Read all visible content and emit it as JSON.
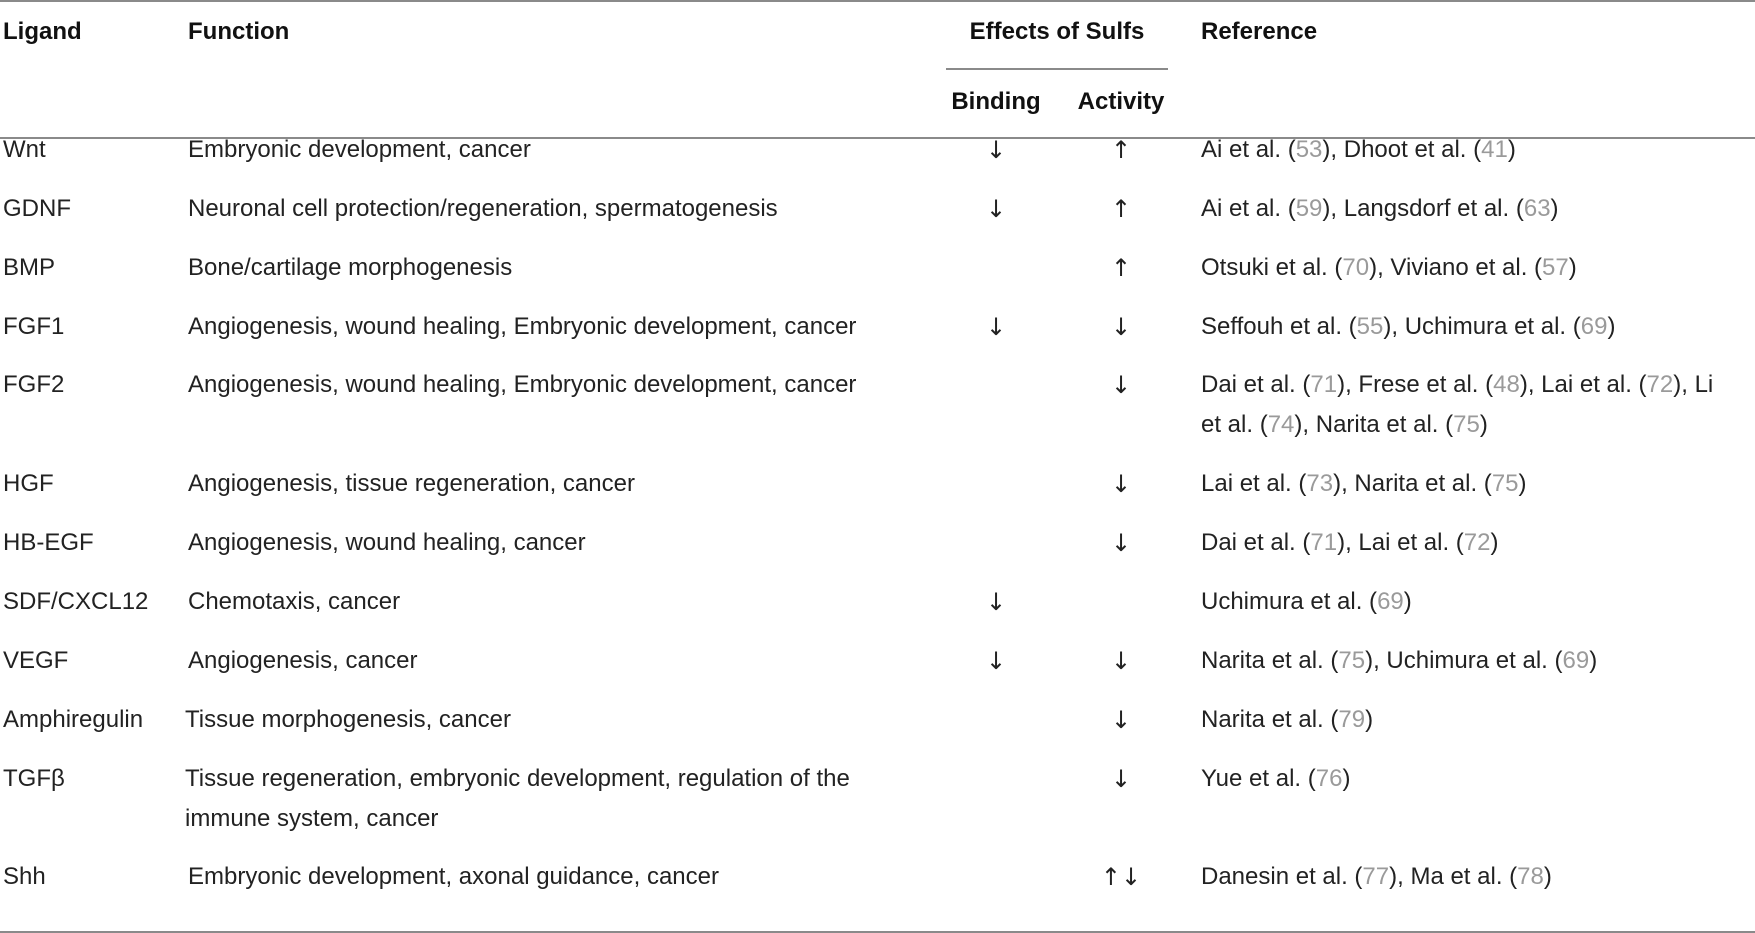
{
  "headers": {
    "ligand": "Ligand",
    "function": "Function",
    "effects": "Effects of Sulfs",
    "binding": "Binding",
    "activity": "Activity",
    "reference": "Reference"
  },
  "rows": [
    {
      "ligand": "Wnt",
      "function": [
        "Embryonic development, cancer"
      ],
      "binding": "↓",
      "activity": "↑",
      "reference": [
        [
          "Ai et al. (",
          "53",
          "), Dhoot et al. (",
          "41",
          ")"
        ]
      ]
    },
    {
      "ligand": "GDNF",
      "function": [
        "Neuronal cell protection/regeneration, spermatogenesis"
      ],
      "binding": "↓",
      "activity": "↑",
      "reference": [
        [
          "Ai et al. (",
          "59",
          "), Langsdorf et al. (",
          "63",
          ")"
        ]
      ]
    },
    {
      "ligand": "BMP",
      "function": [
        "Bone/cartilage morphogenesis"
      ],
      "binding": "",
      "activity": "↑",
      "reference": [
        [
          "Otsuki et al. (",
          "70",
          "), Viviano et al. (",
          "57",
          ")"
        ]
      ]
    },
    {
      "ligand": "FGF1",
      "function": [
        "Angiogenesis, wound healing, Embryonic development, cancer"
      ],
      "binding": "↓",
      "activity": "↓",
      "reference": [
        [
          "Seffouh et al. (",
          "55",
          "), Uchimura et al. (",
          "69",
          ")"
        ]
      ]
    },
    {
      "ligand": "FGF2",
      "function": [
        "Angiogenesis, wound healing, Embryonic development, cancer"
      ],
      "binding": "",
      "activity": "↓",
      "reference": [
        [
          "Dai et al. (",
          "71",
          "), Frese et al. (",
          "48",
          "), Lai et al. (",
          "72",
          "), Li"
        ],
        [
          "et al. (",
          "74",
          "), Narita et al. (",
          "75",
          ")"
        ]
      ]
    },
    {
      "ligand": "HGF",
      "function": [
        "Angiogenesis, tissue regeneration, cancer"
      ],
      "binding": "",
      "activity": "↓",
      "reference": [
        [
          "Lai et al. (",
          "73",
          "), Narita et al. (",
          "75",
          ")"
        ]
      ]
    },
    {
      "ligand": "HB-EGF",
      "function": [
        "Angiogenesis, wound healing, cancer"
      ],
      "binding": "",
      "activity": "↓",
      "reference": [
        [
          "Dai et al. (",
          "71",
          "), Lai et al. (",
          "72",
          ")"
        ]
      ]
    },
    {
      "ligand": "SDF/CXCL12",
      "function": [
        "Chemotaxis, cancer"
      ],
      "binding": "↓",
      "activity": "",
      "reference": [
        [
          "Uchimura et al. (",
          "69",
          ")"
        ]
      ]
    },
    {
      "ligand": "VEGF",
      "function": [
        "Angiogenesis, cancer"
      ],
      "binding": "↓",
      "activity": "↓",
      "reference": [
        [
          "Narita et al. (",
          "75",
          "), Uchimura et al. (",
          "69",
          ")"
        ]
      ]
    },
    {
      "ligand": "Amphiregulin",
      "function": [
        "Tissue morphogenesis, cancer"
      ],
      "binding": "",
      "activity": "↓",
      "reference": [
        [
          "Narita et al. (",
          "79",
          ")"
        ]
      ]
    },
    {
      "ligand": "TGFβ",
      "function": [
        "Tissue regeneration, embryonic development, regulation of the",
        "immune system, cancer"
      ],
      "binding": "",
      "activity": "↓",
      "reference": [
        [
          "Yue et al. (",
          "76",
          ")"
        ]
      ]
    },
    {
      "ligand": "Shh",
      "function": [
        "Embryonic development, axonal guidance, cancer"
      ],
      "binding": "",
      "activity": "↑↓",
      "reference": [
        [
          "Danesin et al. (",
          "77",
          "), Ma et al. (",
          "78",
          ")"
        ]
      ]
    }
  ],
  "colors": {
    "rule": "#8a8a8a",
    "citation": "#9a9a9a",
    "text": "#222222"
  }
}
